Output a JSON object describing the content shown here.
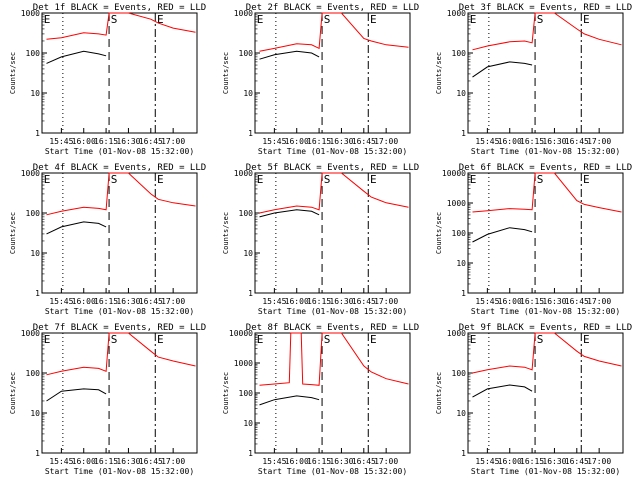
{
  "colors": {
    "events": "#000000",
    "lld": "#ff0000",
    "axes": "#000000"
  },
  "chart_data": [
    {
      "type": "line",
      "title": "Det 1f BLACK = Events, RED = LLD",
      "xlabel": "Start Time (01-Nov-08 15:32:00)",
      "ylabel": "Counts/sec",
      "y_scale": "log",
      "ylim": [
        1,
        1000
      ],
      "yticks": [
        "1",
        "10",
        "100",
        "1000"
      ],
      "xticks": [
        "15:45",
        "16:00",
        "16:15",
        "16:30",
        "16:45",
        "17:00"
      ],
      "xlim": [
        "15:32",
        "17:16"
      ],
      "markers": [
        "E",
        "S",
        "E"
      ],
      "grid": false,
      "series": [
        {
          "name": "BLACK = Events",
          "x": [
            "15:35",
            "15:45",
            "16:00",
            "16:10",
            "16:15",
            "16:17",
            "16:19",
            "16:50",
            "17:00",
            "17:15"
          ],
          "values": [
            55,
            80,
            110,
            95,
            85,
            null,
            null,
            null,
            null,
            null
          ]
        },
        {
          "name": "RED = LLD",
          "x": [
            "15:35",
            "15:45",
            "16:00",
            "16:10",
            "16:15",
            "16:17",
            "16:19",
            "16:30",
            "16:45",
            "16:50",
            "17:00",
            "17:15"
          ],
          "values": [
            220,
            240,
            320,
            300,
            280,
            1000,
            1000,
            1000,
            700,
            560,
            420,
            330
          ]
        }
      ]
    },
    {
      "type": "line",
      "title": "Det 2f BLACK = Events, RED = LLD",
      "xlabel": "Start Time (01-Nov-08 15:32:00)",
      "ylabel": "Counts/sec",
      "y_scale": "log",
      "ylim": [
        1,
        1000
      ],
      "yticks": [
        "1",
        "10",
        "100",
        "1000"
      ],
      "xticks": [
        "15:45",
        "16:00",
        "16:15",
        "16:30",
        "16:45",
        "17:00"
      ],
      "xlim": [
        "15:32",
        "17:16"
      ],
      "markers": [
        "E",
        "S",
        "E"
      ],
      "grid": false,
      "series": [
        {
          "name": "BLACK = Events",
          "x": [
            "15:35",
            "15:45",
            "16:00",
            "16:10",
            "16:15"
          ],
          "values": [
            70,
            90,
            110,
            100,
            80
          ]
        },
        {
          "name": "RED = LLD",
          "x": [
            "15:35",
            "15:45",
            "16:00",
            "16:10",
            "16:15",
            "16:17",
            "16:30",
            "16:45",
            "16:50",
            "17:00",
            "17:15"
          ],
          "values": [
            110,
            130,
            170,
            160,
            130,
            1000,
            1000,
            230,
            200,
            160,
            140
          ]
        }
      ]
    },
    {
      "type": "line",
      "title": "Det 3f BLACK = Events, RED = LLD",
      "xlabel": "Start Time (01-Nov-08 15:32:00)",
      "ylabel": "Counts/sec",
      "y_scale": "log",
      "ylim": [
        1,
        1000
      ],
      "yticks": [
        "1",
        "10",
        "100",
        "1000"
      ],
      "xticks": [
        "15:45",
        "16:00",
        "16:15",
        "16:30",
        "16:45",
        "17:00"
      ],
      "xlim": [
        "15:32",
        "17:16"
      ],
      "markers": [
        "E",
        "S",
        "E"
      ],
      "grid": false,
      "series": [
        {
          "name": "BLACK = Events",
          "x": [
            "15:35",
            "15:45",
            "16:00",
            "16:10",
            "16:15"
          ],
          "values": [
            25,
            45,
            60,
            55,
            50
          ]
        },
        {
          "name": "RED = LLD",
          "x": [
            "15:35",
            "15:45",
            "16:00",
            "16:10",
            "16:15",
            "16:17",
            "16:30",
            "16:45",
            "16:50",
            "17:00",
            "17:15"
          ],
          "values": [
            120,
            150,
            190,
            200,
            180,
            1000,
            1000,
            400,
            300,
            220,
            160
          ]
        }
      ]
    },
    {
      "type": "line",
      "title": "Det 4f BLACK = Events, RED = LLD",
      "xlabel": "Start Time (01-Nov-08 15:32:00)",
      "ylabel": "Counts/sec",
      "y_scale": "log",
      "ylim": [
        1,
        1000
      ],
      "yticks": [
        "1",
        "10",
        "100",
        "1000"
      ],
      "xticks": [
        "15:45",
        "16:00",
        "16:15",
        "16:30",
        "16:45",
        "17:00"
      ],
      "xlim": [
        "15:32",
        "17:16"
      ],
      "markers": [
        "E",
        "S",
        "E"
      ],
      "grid": false,
      "series": [
        {
          "name": "BLACK = Events",
          "x": [
            "15:35",
            "15:45",
            "16:00",
            "16:10",
            "16:15"
          ],
          "values": [
            30,
            45,
            60,
            55,
            45
          ]
        },
        {
          "name": "RED = LLD",
          "x": [
            "15:35",
            "15:45",
            "16:00",
            "16:10",
            "16:15",
            "16:17",
            "16:30",
            "16:45",
            "16:50",
            "17:00",
            "17:15"
          ],
          "values": [
            90,
            110,
            140,
            130,
            120,
            1000,
            1000,
            300,
            220,
            180,
            150
          ]
        }
      ]
    },
    {
      "type": "line",
      "title": "Det 5f BLACK = Events, RED = LLD",
      "xlabel": "Start Time (01-Nov-08 15:32:00)",
      "ylabel": "Counts/sec",
      "y_scale": "log",
      "ylim": [
        1,
        1000
      ],
      "yticks": [
        "1",
        "10",
        "100",
        "1000"
      ],
      "xticks": [
        "15:45",
        "16:00",
        "16:15",
        "16:30",
        "16:45",
        "17:00"
      ],
      "xlim": [
        "15:32",
        "17:16"
      ],
      "markers": [
        "E",
        "S",
        "E"
      ],
      "grid": false,
      "series": [
        {
          "name": "BLACK = Events",
          "x": [
            "15:35",
            "15:45",
            "16:00",
            "16:10",
            "16:15"
          ],
          "values": [
            80,
            100,
            120,
            110,
            90
          ]
        },
        {
          "name": "RED = LLD",
          "x": [
            "15:35",
            "15:45",
            "16:00",
            "16:10",
            "16:15",
            "16:17",
            "16:30",
            "16:45",
            "16:50",
            "17:00",
            "17:15"
          ],
          "values": [
            100,
            120,
            150,
            140,
            120,
            1000,
            1000,
            350,
            250,
            180,
            140
          ]
        }
      ]
    },
    {
      "type": "line",
      "title": "Det 6f BLACK = Events, RED = LLD",
      "xlabel": "Start Time (01-Nov-08 15:32:00)",
      "ylabel": "Counts/sec",
      "y_scale": "log",
      "ylim": [
        1,
        10000
      ],
      "yticks": [
        "1",
        "10",
        "100",
        "1000",
        "10000"
      ],
      "xticks": [
        "15:45",
        "16:00",
        "16:15",
        "16:30",
        "16:45",
        "17:00"
      ],
      "xlim": [
        "15:32",
        "17:16"
      ],
      "markers": [
        "E",
        "S",
        "E"
      ],
      "grid": false,
      "series": [
        {
          "name": "BLACK = Events",
          "x": [
            "15:35",
            "15:45",
            "16:00",
            "16:10",
            "16:15"
          ],
          "values": [
            50,
            90,
            150,
            130,
            110
          ]
        },
        {
          "name": "RED = LLD",
          "x": [
            "15:35",
            "15:45",
            "16:00",
            "16:10",
            "16:15",
            "16:17",
            "16:30",
            "16:45",
            "16:50",
            "17:00",
            "17:15"
          ],
          "values": [
            500,
            550,
            650,
            620,
            600,
            10000,
            10000,
            1200,
            900,
            700,
            500
          ]
        }
      ]
    },
    {
      "type": "line",
      "title": "Det 7f BLACK = Events, RED = LLD",
      "xlabel": "Start Time (01-Nov-08 15:32:00)",
      "ylabel": "Counts/sec",
      "y_scale": "log",
      "ylim": [
        1,
        1000
      ],
      "yticks": [
        "1",
        "10",
        "100",
        "1000"
      ],
      "xticks": [
        "15:45",
        "16:00",
        "16:15",
        "16:30",
        "16:45",
        "17:00"
      ],
      "xlim": [
        "15:32",
        "17:16"
      ],
      "markers": [
        "E",
        "S",
        "E"
      ],
      "grid": false,
      "series": [
        {
          "name": "BLACK = Events",
          "x": [
            "15:35",
            "15:45",
            "16:00",
            "16:10",
            "16:15"
          ],
          "values": [
            20,
            35,
            40,
            38,
            30
          ]
        },
        {
          "name": "RED = LLD",
          "x": [
            "15:35",
            "15:45",
            "16:00",
            "16:10",
            "16:15",
            "16:17",
            "16:30",
            "16:45",
            "16:50",
            "17:00",
            "17:15"
          ],
          "values": [
            90,
            110,
            140,
            130,
            110,
            1000,
            1000,
            350,
            250,
            200,
            150
          ]
        }
      ]
    },
    {
      "type": "line",
      "title": "Det 8f BLACK = Events, RED = LLD",
      "xlabel": "Start Time (01-Nov-08 15:32:00)",
      "ylabel": "Counts/sec",
      "y_scale": "log",
      "ylim": [
        1,
        10000
      ],
      "yticks": [
        "1",
        "10",
        "100",
        "1000",
        "10000"
      ],
      "xticks": [
        "15:45",
        "16:00",
        "16:15",
        "16:30",
        "16:45",
        "17:00"
      ],
      "xlim": [
        "15:32",
        "17:16"
      ],
      "markers": [
        "E",
        "S",
        "E"
      ],
      "grid": false,
      "series": [
        {
          "name": "BLACK = Events",
          "x": [
            "15:35",
            "15:45",
            "16:00",
            "16:10",
            "16:15"
          ],
          "values": [
            40,
            60,
            80,
            70,
            60
          ]
        },
        {
          "name": "RED = LLD",
          "x": [
            "15:35",
            "15:45",
            "15:55",
            "15:56",
            "16:03",
            "16:04",
            "16:10",
            "16:15",
            "16:17",
            "16:30",
            "16:45",
            "16:50",
            "17:00",
            "17:15"
          ],
          "values": [
            180,
            200,
            220,
            10000,
            10000,
            200,
            190,
            180,
            10000,
            10000,
            800,
            500,
            300,
            200
          ]
        }
      ]
    },
    {
      "type": "line",
      "title": "Det 9f BLACK = Events, RED = LLD",
      "xlabel": "Start Time (01-Nov-08 15:32:00)",
      "ylabel": "Counts/sec",
      "y_scale": "log",
      "ylim": [
        1,
        1000
      ],
      "yticks": [
        "1",
        "10",
        "100",
        "1000"
      ],
      "xticks": [
        "15:45",
        "16:00",
        "16:15",
        "16:30",
        "16:45",
        "17:00"
      ],
      "xlim": [
        "15:32",
        "17:16"
      ],
      "markers": [
        "E",
        "S",
        "E"
      ],
      "grid": false,
      "series": [
        {
          "name": "BLACK = Events",
          "x": [
            "15:35",
            "15:45",
            "16:00",
            "16:10",
            "16:15"
          ],
          "values": [
            25,
            40,
            50,
            45,
            35
          ]
        },
        {
          "name": "RED = LLD",
          "x": [
            "15:35",
            "15:45",
            "16:00",
            "16:10",
            "16:15",
            "16:17",
            "16:30",
            "16:45",
            "16:50",
            "17:00",
            "17:15"
          ],
          "values": [
            100,
            120,
            150,
            140,
            120,
            1000,
            1000,
            350,
            260,
            200,
            150
          ]
        }
      ]
    }
  ]
}
